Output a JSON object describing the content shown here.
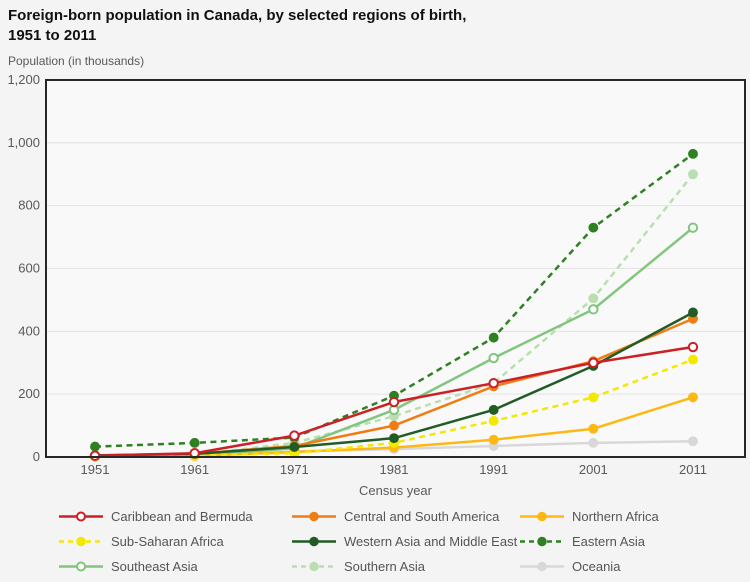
{
  "header": {
    "title_line1": "Foreign-born population in Canada, by selected regions of birth,",
    "title_line2": "1951 to 2011",
    "subtitle": "Population (in thousands)"
  },
  "chart_data": {
    "type": "line",
    "title": "Foreign-born population in Canada, by selected regions of birth, 1951 to 2011",
    "xlabel": "Census year",
    "ylabel": "Population (in thousands)",
    "x": [
      1951,
      1961,
      1971,
      1981,
      1991,
      2001,
      2011
    ],
    "ylim": [
      0,
      1200
    ],
    "ytick_interval": 200,
    "ytick_labels": [
      "0",
      "200",
      "400",
      "600",
      "800",
      "1,000",
      "1,200"
    ],
    "grid": true,
    "legend_position": "bottom",
    "series": [
      {
        "name": "Caribbean and Bermuda",
        "color": "#cc2027",
        "dash": false,
        "marker": "open",
        "z": 9,
        "values": [
          4,
          12,
          68,
          175,
          235,
          300,
          350
        ]
      },
      {
        "name": "Central and South America",
        "color": "#f07d13",
        "dash": false,
        "marker": "filled",
        "z": 7,
        "values": [
          5,
          10,
          35,
          100,
          225,
          305,
          440
        ]
      },
      {
        "name": "Northern Africa",
        "color": "#fdb813",
        "dash": false,
        "marker": "filled",
        "z": 5,
        "values": [
          1,
          3,
          16,
          30,
          55,
          90,
          190
        ]
      },
      {
        "name": "Sub-Saharan Africa",
        "color": "#f3e800",
        "dash": true,
        "marker": "filled",
        "z": 6,
        "values": [
          2,
          5,
          12,
          45,
          115,
          190,
          310
        ]
      },
      {
        "name": "Western Asia and Middle East",
        "color": "#215c24",
        "dash": false,
        "marker": "filled",
        "z": 8,
        "values": [
          5,
          10,
          32,
          60,
          150,
          290,
          460
        ]
      },
      {
        "name": "Eastern Asia",
        "color": "#2e8022",
        "dash": true,
        "marker": "filled",
        "z": 4,
        "values": [
          33,
          45,
          62,
          195,
          380,
          730,
          965
        ]
      },
      {
        "name": "Southeast Asia",
        "color": "#82c57d",
        "dash": false,
        "marker": "open",
        "z": 3,
        "values": [
          2,
          5,
          28,
          150,
          315,
          470,
          730
        ]
      },
      {
        "name": "Southern Asia",
        "color": "#b9dfb1",
        "dash": true,
        "marker": "filled",
        "z": 2,
        "values": [
          2,
          6,
          45,
          130,
          235,
          505,
          900
        ]
      },
      {
        "name": "Oceania",
        "color": "#d8d8d8",
        "dash": false,
        "marker": "filled",
        "z": 1,
        "values": [
          4,
          6,
          18,
          25,
          35,
          45,
          50
        ]
      }
    ]
  },
  "style": {
    "page_bg": "#f4f4f4",
    "plot_bg": "#f9f9f9",
    "border_color": "#262626",
    "grid_color": "#e3e3e3",
    "text_color": "#595959",
    "title_color": "#111111"
  }
}
